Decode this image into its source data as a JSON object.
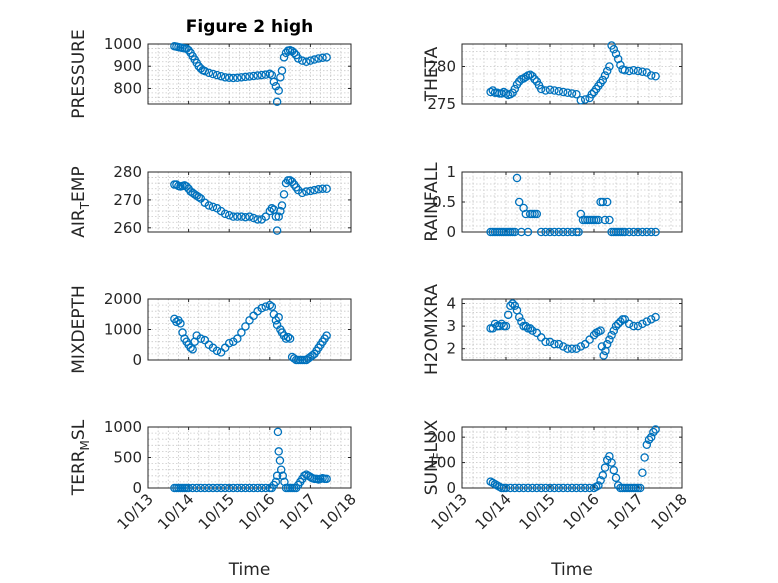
{
  "chart_data": [
    {
      "type": "scatter",
      "title": "Figure 2 high",
      "xlabel": "",
      "ylabel": "PRESSURE",
      "ylim": [
        730,
        1000
      ],
      "yticks": [
        800,
        900,
        1000
      ],
      "xlim": [
        0,
        5
      ],
      "xticks": [
        0,
        1,
        2,
        3,
        4,
        5
      ],
      "xticklabels": [],
      "grid": true,
      "x": [
        0.65,
        0.7,
        0.75,
        0.8,
        0.85,
        0.9,
        0.95,
        1.0,
        1.05,
        1.1,
        1.15,
        1.2,
        1.25,
        1.3,
        1.35,
        1.4,
        1.5,
        1.6,
        1.7,
        1.8,
        1.9,
        2.0,
        2.1,
        2.2,
        2.3,
        2.4,
        2.5,
        2.6,
        2.7,
        2.8,
        2.9,
        3.0,
        3.05,
        3.1,
        3.15,
        3.18,
        3.22,
        3.26,
        3.3,
        3.35,
        3.4,
        3.45,
        3.5,
        3.55,
        3.6,
        3.65,
        3.7,
        3.8,
        3.9,
        4.0,
        4.1,
        4.2,
        4.3,
        4.4
      ],
      "y": [
        990,
        988,
        986,
        984,
        982,
        981,
        979,
        972,
        960,
        945,
        930,
        915,
        900,
        890,
        882,
        878,
        870,
        865,
        860,
        855,
        850,
        848,
        847,
        848,
        850,
        852,
        854,
        856,
        858,
        860,
        862,
        866,
        860,
        830,
        810,
        740,
        790,
        850,
        880,
        940,
        960,
        970,
        972,
        968,
        960,
        950,
        935,
        925,
        920,
        925,
        930,
        935,
        938,
        940
      ]
    },
    {
      "type": "scatter",
      "xlabel": "",
      "ylabel": "THETA",
      "ylim": [
        275,
        283
      ],
      "yticks": [
        275,
        280
      ],
      "xlim": [
        0,
        5
      ],
      "xticks": [
        0,
        1,
        2,
        3,
        4,
        5
      ],
      "xticklabels": [],
      "grid": true,
      "x": [
        0.65,
        0.7,
        0.75,
        0.8,
        0.85,
        0.9,
        0.95,
        1.0,
        1.05,
        1.1,
        1.15,
        1.2,
        1.25,
        1.3,
        1.35,
        1.4,
        1.45,
        1.5,
        1.55,
        1.6,
        1.65,
        1.7,
        1.75,
        1.8,
        1.9,
        2.0,
        2.1,
        2.2,
        2.3,
        2.4,
        2.5,
        2.6,
        2.7,
        2.8,
        2.9,
        2.95,
        3.0,
        3.05,
        3.1,
        3.15,
        3.2,
        3.25,
        3.3,
        3.35,
        3.4,
        3.45,
        3.5,
        3.55,
        3.6,
        3.65,
        3.7,
        3.8,
        3.9,
        4.0,
        4.1,
        4.2,
        4.3,
        4.4
      ],
      "y": [
        276.6,
        276.8,
        276.5,
        276.5,
        276.4,
        276.4,
        276.6,
        276.4,
        276.2,
        276.3,
        276.5,
        277.0,
        277.6,
        278.0,
        278.3,
        278.4,
        278.6,
        278.8,
        278.9,
        278.7,
        278.3,
        278.0,
        277.5,
        277.0,
        276.8,
        276.9,
        276.8,
        276.7,
        276.6,
        276.5,
        276.4,
        276.3,
        275.5,
        275.6,
        275.8,
        276.3,
        276.6,
        277.0,
        277.4,
        277.8,
        278.2,
        278.8,
        279.4,
        280.0,
        282.8,
        282.3,
        281.7,
        281.0,
        280.2,
        279.6,
        279.5,
        279.4,
        279.5,
        279.4,
        279.3,
        279.2,
        278.8,
        278.7
      ]
    },
    {
      "type": "scatter",
      "xlabel": "",
      "ylabel": "AIR_TEMP",
      "ylim": [
        258.5,
        280
      ],
      "yticks": [
        260,
        270,
        280
      ],
      "xlim": [
        0,
        5
      ],
      "xticks": [
        0,
        1,
        2,
        3,
        4,
        5
      ],
      "xticklabels": [],
      "grid": true,
      "x": [
        0.65,
        0.7,
        0.75,
        0.8,
        0.85,
        0.9,
        0.95,
        1.0,
        1.05,
        1.1,
        1.15,
        1.2,
        1.25,
        1.3,
        1.4,
        1.5,
        1.6,
        1.7,
        1.8,
        1.9,
        2.0,
        2.1,
        2.2,
        2.3,
        2.4,
        2.5,
        2.6,
        2.7,
        2.8,
        2.9,
        3.0,
        3.05,
        3.1,
        3.15,
        3.18,
        3.22,
        3.26,
        3.3,
        3.35,
        3.4,
        3.45,
        3.5,
        3.55,
        3.6,
        3.65,
        3.7,
        3.8,
        3.9,
        4.0,
        4.1,
        4.2,
        4.3,
        4.4
      ],
      "y": [
        275.5,
        275.5,
        275.0,
        274.8,
        275.0,
        275.2,
        274.8,
        274.0,
        273.0,
        272.5,
        272.0,
        271.5,
        271.0,
        270.5,
        269.0,
        268.0,
        267.5,
        267.0,
        266.0,
        265.0,
        264.5,
        264.0,
        264.0,
        264.0,
        263.8,
        264.0,
        263.5,
        263.0,
        263.0,
        264.0,
        266.0,
        267.0,
        266.5,
        264.0,
        259.0,
        264.0,
        266.0,
        268.0,
        272.0,
        276.0,
        277.0,
        277.0,
        276.5,
        275.5,
        274.5,
        273.5,
        272.5,
        273.0,
        273.2,
        273.5,
        273.8,
        274.0,
        274.0
      ]
    },
    {
      "type": "scatter",
      "xlabel": "",
      "ylabel": "RAINFALL",
      "ylim": [
        0,
        1
      ],
      "yticks": [
        0,
        0.5,
        1
      ],
      "xlim": [
        0,
        5
      ],
      "xticks": [
        0,
        1,
        2,
        3,
        4,
        5
      ],
      "xticklabels": [],
      "grid": true,
      "x": [
        0.65,
        0.7,
        0.75,
        0.8,
        0.85,
        0.9,
        0.95,
        1.0,
        1.05,
        1.1,
        1.15,
        1.2,
        1.25,
        1.3,
        1.35,
        1.4,
        1.45,
        1.5,
        1.55,
        1.6,
        1.65,
        1.7,
        1.8,
        1.9,
        2.0,
        2.1,
        2.2,
        2.3,
        2.4,
        2.5,
        2.6,
        2.65,
        2.7,
        2.75,
        2.8,
        2.85,
        2.9,
        2.95,
        3.0,
        3.05,
        3.1,
        3.15,
        3.2,
        3.25,
        3.3,
        3.35,
        3.4,
        3.45,
        3.5,
        3.55,
        3.6,
        3.65,
        3.7,
        3.8,
        3.9,
        4.0,
        4.1,
        4.2,
        4.3,
        4.4
      ],
      "y": [
        0,
        0,
        0,
        0,
        0,
        0,
        0,
        0,
        0,
        0,
        0,
        0,
        0.9,
        0.5,
        0,
        0.4,
        0.3,
        0,
        0.3,
        0.3,
        0.3,
        0.3,
        0,
        0,
        0,
        0,
        0,
        0,
        0,
        0,
        0,
        0,
        0.3,
        0.2,
        0.2,
        0.2,
        0.2,
        0.2,
        0.2,
        0.2,
        0.2,
        0.5,
        0.5,
        0.2,
        0.5,
        0.2,
        0,
        0,
        0,
        0,
        0,
        0,
        0,
        0,
        0,
        0,
        0,
        0,
        0,
        0
      ]
    },
    {
      "type": "scatter",
      "xlabel": "",
      "ylabel": "MIXDEPTH",
      "ylim": [
        0,
        2000
      ],
      "yticks": [
        0,
        1000,
        2000
      ],
      "xlim": [
        0,
        5
      ],
      "xticks": [
        0,
        1,
        2,
        3,
        4,
        5
      ],
      "xticklabels": [],
      "grid": true,
      "x": [
        0.65,
        0.7,
        0.75,
        0.8,
        0.85,
        0.9,
        0.95,
        1.0,
        1.05,
        1.1,
        1.15,
        1.2,
        1.3,
        1.4,
        1.5,
        1.6,
        1.7,
        1.8,
        1.9,
        2.0,
        2.1,
        2.2,
        2.3,
        2.4,
        2.5,
        2.6,
        2.7,
        2.8,
        2.9,
        3.0,
        3.05,
        3.1,
        3.15,
        3.18,
        3.22,
        3.26,
        3.3,
        3.35,
        3.4,
        3.45,
        3.5,
        3.55,
        3.6,
        3.65,
        3.7,
        3.75,
        3.8,
        3.85,
        3.9,
        3.95,
        4.0,
        4.05,
        4.1,
        4.15,
        4.2,
        4.25,
        4.3,
        4.35,
        4.4
      ],
      "y": [
        1350,
        1250,
        1300,
        1200,
        900,
        700,
        600,
        500,
        400,
        350,
        600,
        800,
        700,
        650,
        500,
        400,
        300,
        250,
        400,
        550,
        600,
        700,
        900,
        1100,
        1300,
        1450,
        1600,
        1700,
        1750,
        1800,
        1750,
        1500,
        1300,
        1150,
        1400,
        1000,
        900,
        800,
        700,
        750,
        700,
        100,
        50,
        0,
        0,
        0,
        0,
        0,
        0,
        50,
        100,
        150,
        200,
        300,
        400,
        500,
        600,
        700,
        800
      ]
    },
    {
      "type": "scatter",
      "xlabel": "",
      "ylabel": "H2OMIXRA",
      "ylim": [
        1.5,
        4.2
      ],
      "yticks": [
        2,
        3,
        4
      ],
      "xlim": [
        0,
        5
      ],
      "xticks": [
        0,
        1,
        2,
        3,
        4,
        5
      ],
      "xticklabels": [],
      "grid": true,
      "x": [
        0.65,
        0.7,
        0.75,
        0.8,
        0.85,
        0.9,
        0.95,
        1.0,
        1.05,
        1.1,
        1.15,
        1.2,
        1.25,
        1.3,
        1.35,
        1.4,
        1.45,
        1.5,
        1.55,
        1.6,
        1.7,
        1.8,
        1.9,
        2.0,
        2.1,
        2.2,
        2.3,
        2.4,
        2.5,
        2.6,
        2.7,
        2.8,
        2.9,
        3.0,
        3.05,
        3.1,
        3.15,
        3.18,
        3.22,
        3.26,
        3.3,
        3.35,
        3.4,
        3.45,
        3.5,
        3.55,
        3.6,
        3.65,
        3.7,
        3.8,
        3.9,
        4.0,
        4.1,
        4.2,
        4.3,
        4.4
      ],
      "y": [
        2.9,
        2.9,
        3.1,
        3.0,
        3.0,
        3.1,
        3.0,
        3.0,
        3.5,
        3.9,
        4.0,
        3.9,
        3.7,
        3.4,
        3.2,
        3.0,
        3.0,
        2.9,
        2.9,
        2.8,
        2.7,
        2.5,
        2.3,
        2.3,
        2.2,
        2.2,
        2.1,
        2.0,
        2.0,
        2.0,
        2.1,
        2.2,
        2.4,
        2.6,
        2.7,
        2.75,
        2.8,
        2.1,
        1.7,
        1.9,
        2.2,
        2.4,
        2.6,
        2.8,
        3.0,
        3.1,
        3.2,
        3.3,
        3.3,
        3.1,
        3.0,
        3.0,
        3.1,
        3.2,
        3.3,
        3.4
      ]
    },
    {
      "type": "scatter",
      "xlabel": "Time",
      "ylabel": "TERR_MSL",
      "ylim": [
        0,
        1000
      ],
      "yticks": [
        0,
        500,
        1000
      ],
      "xlim": [
        0,
        5
      ],
      "xticks": [
        0,
        1,
        2,
        3,
        4,
        5
      ],
      "xticklabels": [
        "10/13",
        "10/14",
        "10/15",
        "10/16",
        "10/17",
        "10/18"
      ],
      "grid": true,
      "x": [
        0.65,
        0.7,
        0.75,
        0.8,
        0.85,
        0.9,
        0.95,
        1.0,
        1.1,
        1.2,
        1.3,
        1.4,
        1.5,
        1.6,
        1.7,
        1.8,
        1.9,
        2.0,
        2.1,
        2.2,
        2.3,
        2.4,
        2.5,
        2.6,
        2.7,
        2.8,
        2.9,
        3.0,
        3.05,
        3.1,
        3.15,
        3.18,
        3.2,
        3.22,
        3.25,
        3.28,
        3.32,
        3.36,
        3.4,
        3.45,
        3.5,
        3.55,
        3.6,
        3.65,
        3.7,
        3.75,
        3.8,
        3.85,
        3.9,
        3.95,
        4.0,
        4.05,
        4.1,
        4.15,
        4.2,
        4.25,
        4.3,
        4.35,
        4.4
      ],
      "y": [
        0,
        0,
        0,
        0,
        0,
        0,
        0,
        0,
        0,
        0,
        0,
        0,
        0,
        0,
        0,
        0,
        0,
        0,
        0,
        0,
        0,
        0,
        0,
        0,
        0,
        0,
        0,
        0,
        0,
        50,
        100,
        200,
        920,
        600,
        450,
        300,
        200,
        100,
        0,
        0,
        0,
        0,
        0,
        0,
        50,
        100,
        150,
        200,
        220,
        200,
        180,
        160,
        150,
        150,
        140,
        150,
        160,
        150,
        150
      ]
    },
    {
      "type": "scatter",
      "xlabel": "Time",
      "ylabel": "SUN_FLUX",
      "ylim": [
        0,
        240
      ],
      "yticks": [
        0,
        100,
        200
      ],
      "xlim": [
        0,
        5
      ],
      "xticks": [
        0,
        1,
        2,
        3,
        4,
        5
      ],
      "xticklabels": [
        "10/13",
        "10/14",
        "10/15",
        "10/16",
        "10/17",
        "10/18"
      ],
      "grid": true,
      "x": [
        0.65,
        0.7,
        0.75,
        0.8,
        0.85,
        0.9,
        0.95,
        1.0,
        1.1,
        1.2,
        1.3,
        1.4,
        1.5,
        1.6,
        1.7,
        1.8,
        1.9,
        2.0,
        2.1,
        2.2,
        2.3,
        2.4,
        2.5,
        2.6,
        2.7,
        2.8,
        2.9,
        3.0,
        3.05,
        3.1,
        3.15,
        3.2,
        3.25,
        3.3,
        3.35,
        3.4,
        3.45,
        3.5,
        3.55,
        3.6,
        3.65,
        3.7,
        3.75,
        3.8,
        3.85,
        3.9,
        3.95,
        4.0,
        4.05,
        4.1,
        4.15,
        4.2,
        4.25,
        4.3,
        4.35,
        4.4
      ],
      "y": [
        25,
        20,
        15,
        10,
        5,
        0,
        0,
        0,
        0,
        0,
        0,
        0,
        0,
        0,
        0,
        0,
        0,
        0,
        0,
        0,
        0,
        0,
        0,
        0,
        0,
        0,
        0,
        0,
        5,
        10,
        30,
        50,
        80,
        110,
        125,
        100,
        70,
        40,
        10,
        0,
        0,
        0,
        0,
        0,
        0,
        0,
        0,
        0,
        0,
        60,
        120,
        170,
        190,
        200,
        220,
        230
      ]
    }
  ]
}
